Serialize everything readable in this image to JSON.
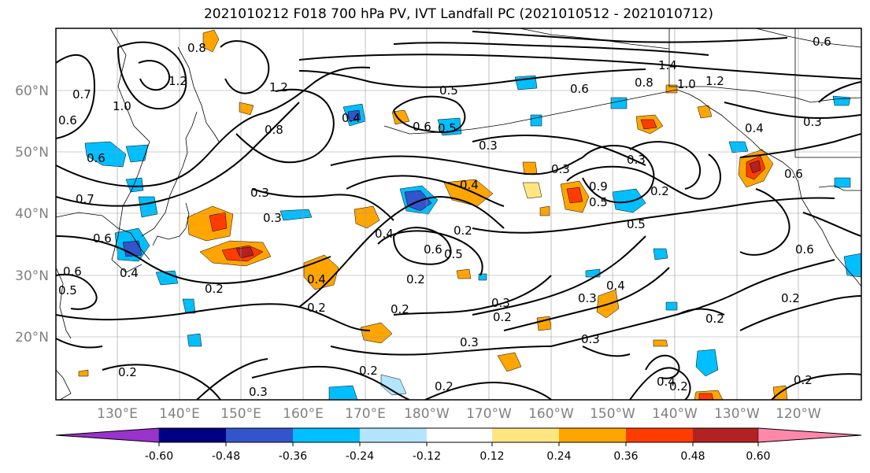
{
  "title": "2021010212 F018 700 hPa PV, IVT Landfall PC (2021010512 - 2021010712)",
  "lat_labels": [
    "60°N",
    "50°N",
    "40°N",
    "30°N",
    "20°N"
  ],
  "lon_labels": [
    "130°E",
    "140°E",
    "150°E",
    "160°E",
    "170°E",
    "180°W",
    "170°W",
    "160°W",
    "150°W",
    "140°W",
    "130°W",
    "120°W"
  ],
  "colorbar": {
    "colors": [
      "#9933cc",
      "#000080",
      "#3355cc",
      "#00bfff",
      "#b3e5ff",
      "#ffffff",
      "#ffe680",
      "#ffa500",
      "#ff3c00",
      "#b22222",
      "#ff88aa"
    ],
    "tick_labels": [
      "-0.60",
      "-0.48",
      "-0.36",
      "-0.24",
      "-0.12",
      "0.12",
      "0.24",
      "0.36",
      "0.48",
      "0.60"
    ]
  },
  "contour_labels": [
    "0.7",
    "0.6",
    "1.0",
    "0.6",
    "1.2",
    "0.8",
    "0.8",
    "1.2",
    "1.4",
    "1.0",
    "1.2",
    "0.8",
    "0.6",
    "0.6",
    "0.5",
    "0.4",
    "0.6",
    "0.5",
    "0.3",
    "0.3",
    "0.3",
    "0.9",
    "0.5",
    "0.2",
    "0.5",
    "0.3",
    "0.4",
    "0.2",
    "0.7",
    "0.3",
    "0.2",
    "0.4",
    "0.6",
    "0.5",
    "0.2",
    "0.4",
    "0.2",
    "0.2",
    "0.2",
    "0.3",
    "0.2",
    "0.3",
    "0.3",
    "0.3",
    "0.4",
    "0.2",
    "0.2",
    "0.3",
    "0.2",
    "0.2",
    "0.4",
    "0.2",
    "0.2",
    "0.6",
    "0.5",
    "0.4",
    "0.6",
    "0.4",
    "0.6",
    "0.6",
    "0.3"
  ]
}
